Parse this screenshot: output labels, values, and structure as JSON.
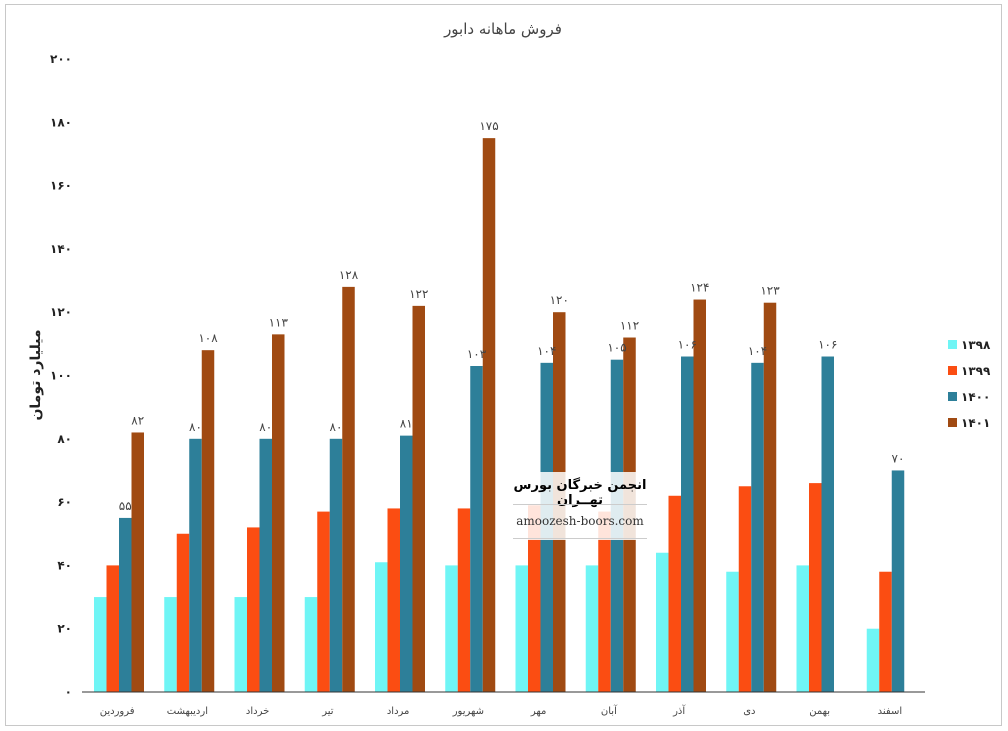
{
  "chart_data": {
    "type": "bar",
    "title": "فروش ماهانه دابور",
    "ylabel": "میلیارد تومان",
    "xlabel": "",
    "ylim": [
      0,
      200
    ],
    "yticks": [
      "۰",
      "۲۰",
      "۴۰",
      "۶۰",
      "۸۰",
      "۱۰۰",
      "۱۲۰",
      "۱۴۰",
      "۱۶۰",
      "۱۸۰",
      "۲۰۰"
    ],
    "categories": [
      "فروردین",
      "اردیبهشت",
      "خرداد",
      "تیر",
      "مرداد",
      "شهریور",
      "مهر",
      "آبان",
      "آذر",
      "دی",
      "بهمن",
      "اسفند"
    ],
    "legend_position": "right",
    "grid": false,
    "series": [
      {
        "name": "۱۳۹۸",
        "color": "#6ff5f5",
        "values": [
          30,
          30,
          30,
          30,
          41,
          40,
          40,
          40,
          44,
          38,
          40,
          20
        ],
        "labels": [
          null,
          null,
          null,
          null,
          null,
          null,
          null,
          null,
          null,
          null,
          null,
          null
        ]
      },
      {
        "name": "۱۳۹۹",
        "color": "#fb4d12",
        "values": [
          40,
          50,
          52,
          57,
          58,
          58,
          59,
          57,
          62,
          65,
          66,
          38
        ],
        "labels": [
          null,
          null,
          null,
          null,
          null,
          null,
          null,
          null,
          null,
          null,
          null,
          null
        ]
      },
      {
        "name": "۱۴۰۰",
        "color": "#2d7f99",
        "values": [
          55,
          80,
          80,
          80,
          81,
          103,
          104,
          105,
          106,
          104,
          106,
          70
        ],
        "labels": [
          "۵۵",
          "۸۰",
          "۸۰",
          "۸۰",
          "۸۱",
          "۱۰۳",
          "۱۰۴",
          "۱۰۵",
          "۱۰۶",
          "۱۰۴",
          "۱۰۶",
          "۷۰"
        ]
      },
      {
        "name": "۱۴۰۱",
        "color": "#a04a12",
        "values": [
          82,
          108,
          113,
          128,
          122,
          175,
          120,
          112,
          124,
          123,
          null,
          null
        ],
        "labels": [
          "۸۲",
          "۱۰۸",
          "۱۱۳",
          "۱۲۸",
          "۱۲۲",
          "۱۷۵",
          "۱۲۰",
          "۱۱۲",
          "۱۲۴",
          "۱۲۳",
          null,
          null
        ]
      }
    ]
  },
  "watermark": {
    "title": "انجمن خبرگان بورس تهــران",
    "url": "amoozesh-boors.com"
  }
}
